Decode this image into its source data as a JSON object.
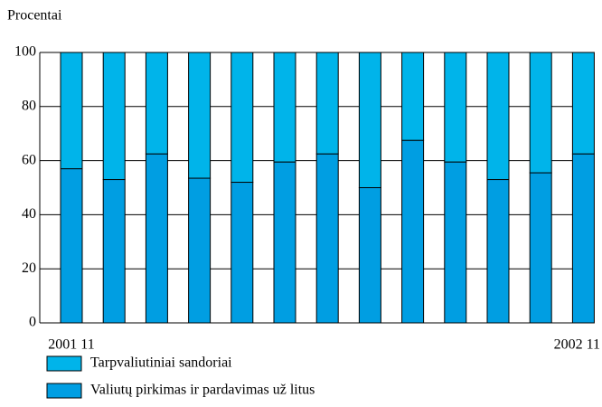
{
  "chart_data": {
    "type": "stacked_bar",
    "y_label": "Procentai",
    "categories": [
      "2001 11",
      null,
      null,
      null,
      null,
      null,
      null,
      null,
      null,
      null,
      null,
      null,
      "2002 11"
    ],
    "series": [
      {
        "name": "Tarpvaliutiniai sandoriai",
        "color": "#00b4ea",
        "values": [
          43,
          47,
          37.5,
          46.5,
          48,
          40.5,
          37.5,
          50,
          32.5,
          40.5,
          47,
          44.5,
          37.5
        ]
      },
      {
        "name": "Valiutų pirkimas ir pardavimas už litus",
        "color": "#009ee2",
        "values": [
          57,
          53,
          62.5,
          53.5,
          52,
          59.5,
          62.5,
          50,
          67.5,
          59.5,
          53,
          55.5,
          62.5
        ]
      }
    ],
    "ylim": [
      0,
      100
    ],
    "yticks": [
      0,
      20,
      40,
      60,
      80,
      100
    ],
    "grid": true
  }
}
